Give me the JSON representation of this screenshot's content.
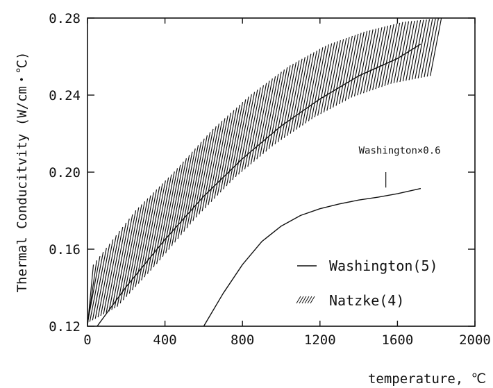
{
  "chart_data": {
    "type": "line",
    "xlabel": "temperature, ℃",
    "ylabel": "Thermal Conducitvity (W/cm・℃)",
    "xlim": [
      0,
      2000
    ],
    "ylim": [
      0.12,
      0.28
    ],
    "x_ticks": [
      "0",
      "400",
      "800",
      "1200",
      "1600",
      "2000"
    ],
    "y_ticks": [
      "0.12",
      "0.16",
      "0.20",
      "0.24",
      "0.28"
    ],
    "grid": false,
    "legend_position": "bottom-right",
    "series": [
      {
        "name": "Washington(5)",
        "style": "solid line",
        "x": [
          50,
          200,
          400,
          600,
          800,
          1000,
          1200,
          1400,
          1600,
          1720
        ],
        "y": [
          0.12,
          0.1405,
          0.165,
          0.1875,
          0.207,
          0.224,
          0.238,
          0.25,
          0.259,
          0.2665
        ]
      },
      {
        "name": "Natzke(4)",
        "style": "hatched band",
        "x": [
          0,
          200,
          400,
          600,
          800,
          1000,
          1200,
          1400,
          1600,
          1800
        ],
        "y_lower": [
          0.12,
          0.13,
          0.152,
          0.176,
          0.197,
          0.214,
          0.228,
          0.239,
          0.246,
          0.25
        ],
        "y_upper": [
          0.152,
          0.18,
          0.2,
          0.222,
          0.24,
          0.255,
          0.266,
          0.273,
          0.278,
          0.28
        ]
      },
      {
        "style": "solid line",
        "x": [
          600,
          700,
          800,
          900,
          1000,
          1100,
          1200,
          1300,
          1400,
          1500,
          1600,
          1720
        ],
        "y": [
          0.12,
          0.137,
          0.152,
          0.164,
          0.172,
          0.1775,
          0.181,
          0.1835,
          0.1855,
          0.187,
          0.1888,
          0.1915
        ]
      }
    ],
    "annotations": [
      {
        "text": "Washington×0.6",
        "x": 1400,
        "y": 0.206,
        "leader_x": 1540,
        "leader_y": [
          0.2,
          0.192
        ]
      }
    ]
  }
}
